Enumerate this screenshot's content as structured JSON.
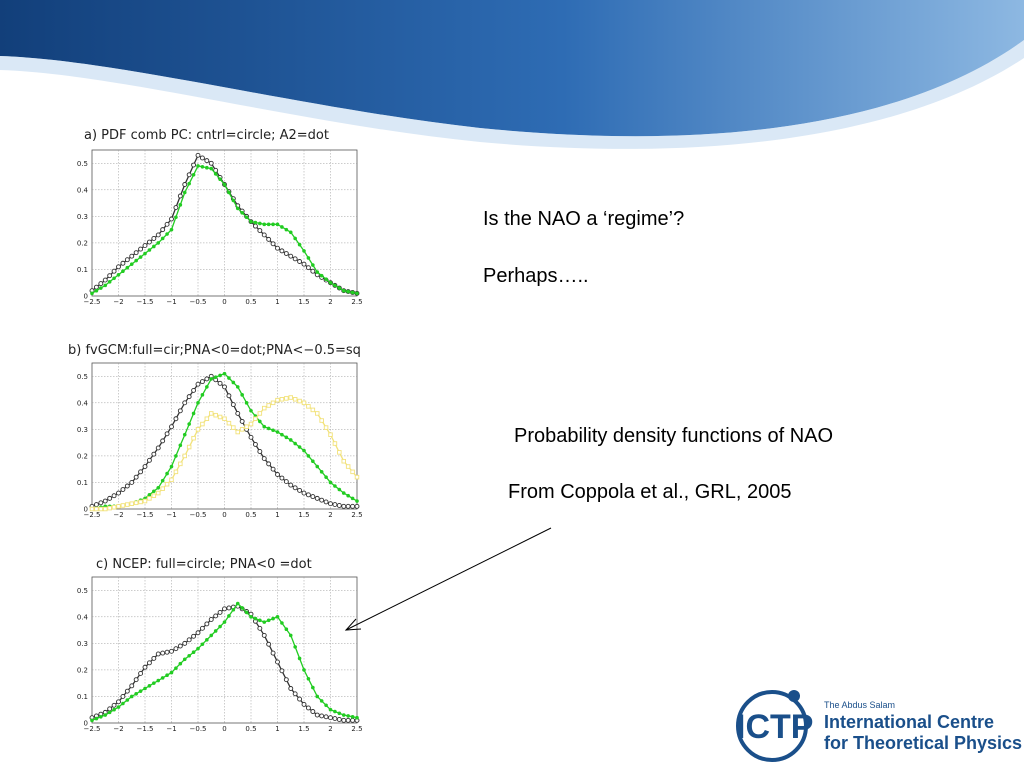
{
  "slide": {
    "text_1": "Is the NAO a ‘regime’?",
    "text_2": "Perhaps…..",
    "text_3": "Probability density functions of NAO",
    "text_4": "From Coppola et al., GRL, 2005"
  },
  "logo": {
    "mark": "ICTP",
    "small_line": "The Abdus Salam",
    "line_1": "International Centre",
    "line_2": "for Theoretical Physics"
  },
  "colors": {
    "banner_dark": "#1a4c8c",
    "banner_light": "#6fa3d6",
    "circle_series": "#333333",
    "dot_series": "#22cc22",
    "square_series": "#f2e27a",
    "logo": "#1a4f8a"
  },
  "chart_data": [
    {
      "type": "line",
      "title": "a)  PDF  comb  PC:  cntrl=circle;  A2=dot",
      "xlim": [
        -2.5,
        2.5
      ],
      "ylim": [
        0,
        0.55
      ],
      "xticks": [
        "−2.5",
        "−2",
        "−1.5",
        "−1",
        "−0.5",
        "0",
        "0.5",
        "1",
        "1.5",
        "2",
        "2.5"
      ],
      "yticks": [
        "0",
        "0.1",
        "0.2",
        "0.3",
        "0.4",
        "0.5"
      ],
      "grid": true,
      "x": [
        -2.5,
        -2.25,
        -2.0,
        -1.75,
        -1.5,
        -1.25,
        -1.0,
        -0.75,
        -0.5,
        -0.25,
        0.0,
        0.25,
        0.5,
        0.75,
        1.0,
        1.25,
        1.5,
        1.75,
        2.0,
        2.25,
        2.5
      ],
      "series": [
        {
          "marker": "circle",
          "color": "#333333",
          "values": [
            0.02,
            0.06,
            0.11,
            0.15,
            0.19,
            0.23,
            0.29,
            0.42,
            0.53,
            0.5,
            0.42,
            0.34,
            0.28,
            0.23,
            0.18,
            0.15,
            0.12,
            0.08,
            0.05,
            0.02,
            0.01
          ]
        },
        {
          "marker": "dot",
          "color": "#22cc22",
          "values": [
            0.01,
            0.04,
            0.08,
            0.12,
            0.16,
            0.2,
            0.25,
            0.39,
            0.49,
            0.48,
            0.42,
            0.33,
            0.28,
            0.27,
            0.27,
            0.24,
            0.17,
            0.09,
            0.05,
            0.02,
            0.01
          ]
        }
      ]
    },
    {
      "type": "line",
      "title": "b)  fvGCM:full=cir;PNA<0=dot;PNA<−0.5=sq",
      "xlim": [
        -2.5,
        2.5
      ],
      "ylim": [
        0,
        0.55
      ],
      "xticks": [
        "−2.5",
        "−2",
        "−1.5",
        "−1",
        "−0.5",
        "0",
        "0.5",
        "1",
        "1.5",
        "2",
        "2.5"
      ],
      "yticks": [
        "0",
        "0.1",
        "0.2",
        "0.3",
        "0.4",
        "0.5"
      ],
      "grid": true,
      "x": [
        -2.5,
        -2.25,
        -2.0,
        -1.75,
        -1.5,
        -1.25,
        -1.0,
        -0.75,
        -0.5,
        -0.25,
        0.0,
        0.25,
        0.5,
        0.75,
        1.0,
        1.25,
        1.5,
        1.75,
        2.0,
        2.25,
        2.5
      ],
      "series": [
        {
          "marker": "circle",
          "color": "#333333",
          "values": [
            0.01,
            0.03,
            0.06,
            0.1,
            0.16,
            0.23,
            0.31,
            0.4,
            0.47,
            0.5,
            0.46,
            0.36,
            0.27,
            0.19,
            0.13,
            0.09,
            0.06,
            0.04,
            0.02,
            0.01,
            0.01
          ]
        },
        {
          "marker": "dot",
          "color": "#22cc22",
          "values": [
            0.0,
            0.01,
            0.01,
            0.02,
            0.04,
            0.08,
            0.16,
            0.28,
            0.4,
            0.49,
            0.51,
            0.46,
            0.37,
            0.31,
            0.29,
            0.26,
            0.22,
            0.16,
            0.1,
            0.06,
            0.03
          ]
        },
        {
          "marker": "square",
          "color": "#f2e27a",
          "values": [
            0.0,
            0.0,
            0.01,
            0.02,
            0.03,
            0.06,
            0.11,
            0.2,
            0.3,
            0.36,
            0.34,
            0.29,
            0.32,
            0.38,
            0.41,
            0.42,
            0.4,
            0.36,
            0.28,
            0.18,
            0.12
          ]
        }
      ]
    },
    {
      "type": "line",
      "title": "c)      NCEP:  full=circle;  PNA<0  =dot",
      "xlim": [
        -2.5,
        2.5
      ],
      "ylim": [
        0,
        0.55
      ],
      "xticks": [
        "−2.5",
        "−2",
        "−1.5",
        "−1",
        "−0.5",
        "0",
        "0.5",
        "1",
        "1.5",
        "2",
        "2.5"
      ],
      "yticks": [
        "0",
        "0.1",
        "0.2",
        "0.3",
        "0.4",
        "0.5"
      ],
      "grid": true,
      "x": [
        -2.5,
        -2.25,
        -2.0,
        -1.75,
        -1.5,
        -1.25,
        -1.0,
        -0.75,
        -0.5,
        -0.25,
        0.0,
        0.25,
        0.5,
        0.75,
        1.0,
        1.25,
        1.5,
        1.75,
        2.0,
        2.25,
        2.5
      ],
      "series": [
        {
          "marker": "circle",
          "color": "#333333",
          "values": [
            0.02,
            0.04,
            0.08,
            0.14,
            0.21,
            0.26,
            0.27,
            0.3,
            0.34,
            0.39,
            0.43,
            0.44,
            0.41,
            0.33,
            0.23,
            0.13,
            0.07,
            0.03,
            0.02,
            0.01,
            0.01
          ]
        },
        {
          "marker": "dot",
          "color": "#22cc22",
          "values": [
            0.01,
            0.03,
            0.06,
            0.1,
            0.13,
            0.16,
            0.19,
            0.24,
            0.28,
            0.33,
            0.38,
            0.45,
            0.4,
            0.38,
            0.4,
            0.33,
            0.2,
            0.1,
            0.05,
            0.03,
            0.02
          ]
        }
      ]
    }
  ]
}
